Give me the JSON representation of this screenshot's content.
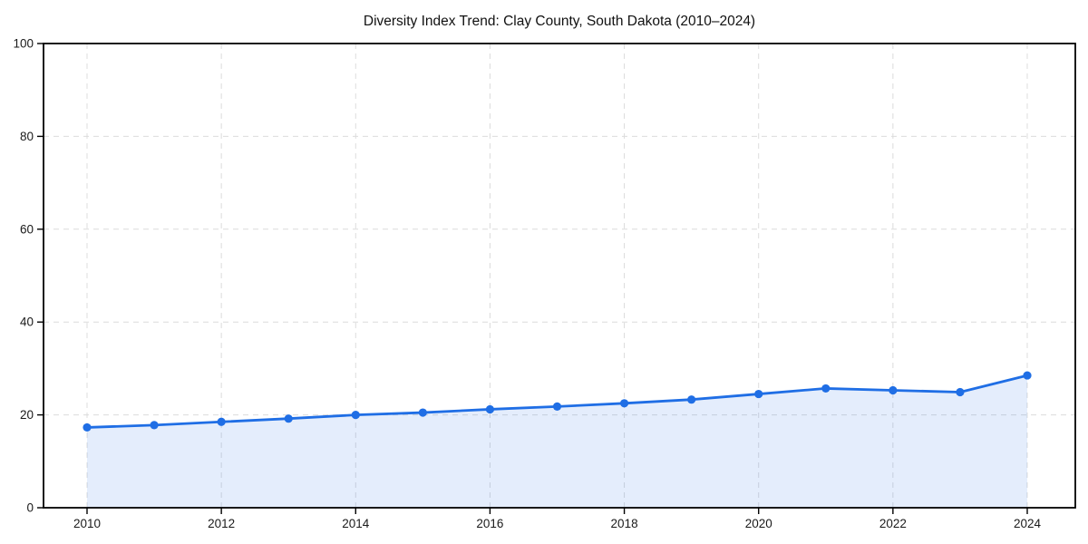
{
  "chart_data": {
    "type": "line",
    "title": "Diversity Index Trend: Clay County, South Dakota (2010–2024)",
    "x": [
      2010,
      2011,
      2012,
      2013,
      2014,
      2015,
      2016,
      2017,
      2018,
      2019,
      2020,
      2021,
      2022,
      2023,
      2024
    ],
    "values": [
      17.3,
      17.8,
      18.5,
      19.2,
      20.0,
      20.5,
      21.2,
      21.8,
      22.5,
      23.3,
      24.5,
      25.7,
      25.3,
      24.9,
      28.5
    ],
    "xlabel": "",
    "ylabel": "",
    "ylim": [
      0,
      100
    ],
    "xticks": [
      2010,
      2012,
      2014,
      2016,
      2018,
      2020,
      2022,
      2024
    ],
    "xtick_labels": [
      "2010",
      "2012",
      "2014",
      "2016",
      "2018",
      "2020",
      "2022",
      "2024"
    ],
    "yticks": [
      0,
      20,
      40,
      60,
      80,
      100
    ],
    "ytick_labels": [
      "0",
      "20",
      "40",
      "60",
      "80",
      "100"
    ],
    "grid": true,
    "grid_style": "dashed",
    "grid_color": "#dcdcdc",
    "area_fill": true,
    "line_color": "#1f6ee5",
    "fill_color": "#1f6ee5",
    "fill_opacity": 0.12,
    "marker": "circle",
    "frame_color": "#000000",
    "background_color": "#ffffff"
  }
}
